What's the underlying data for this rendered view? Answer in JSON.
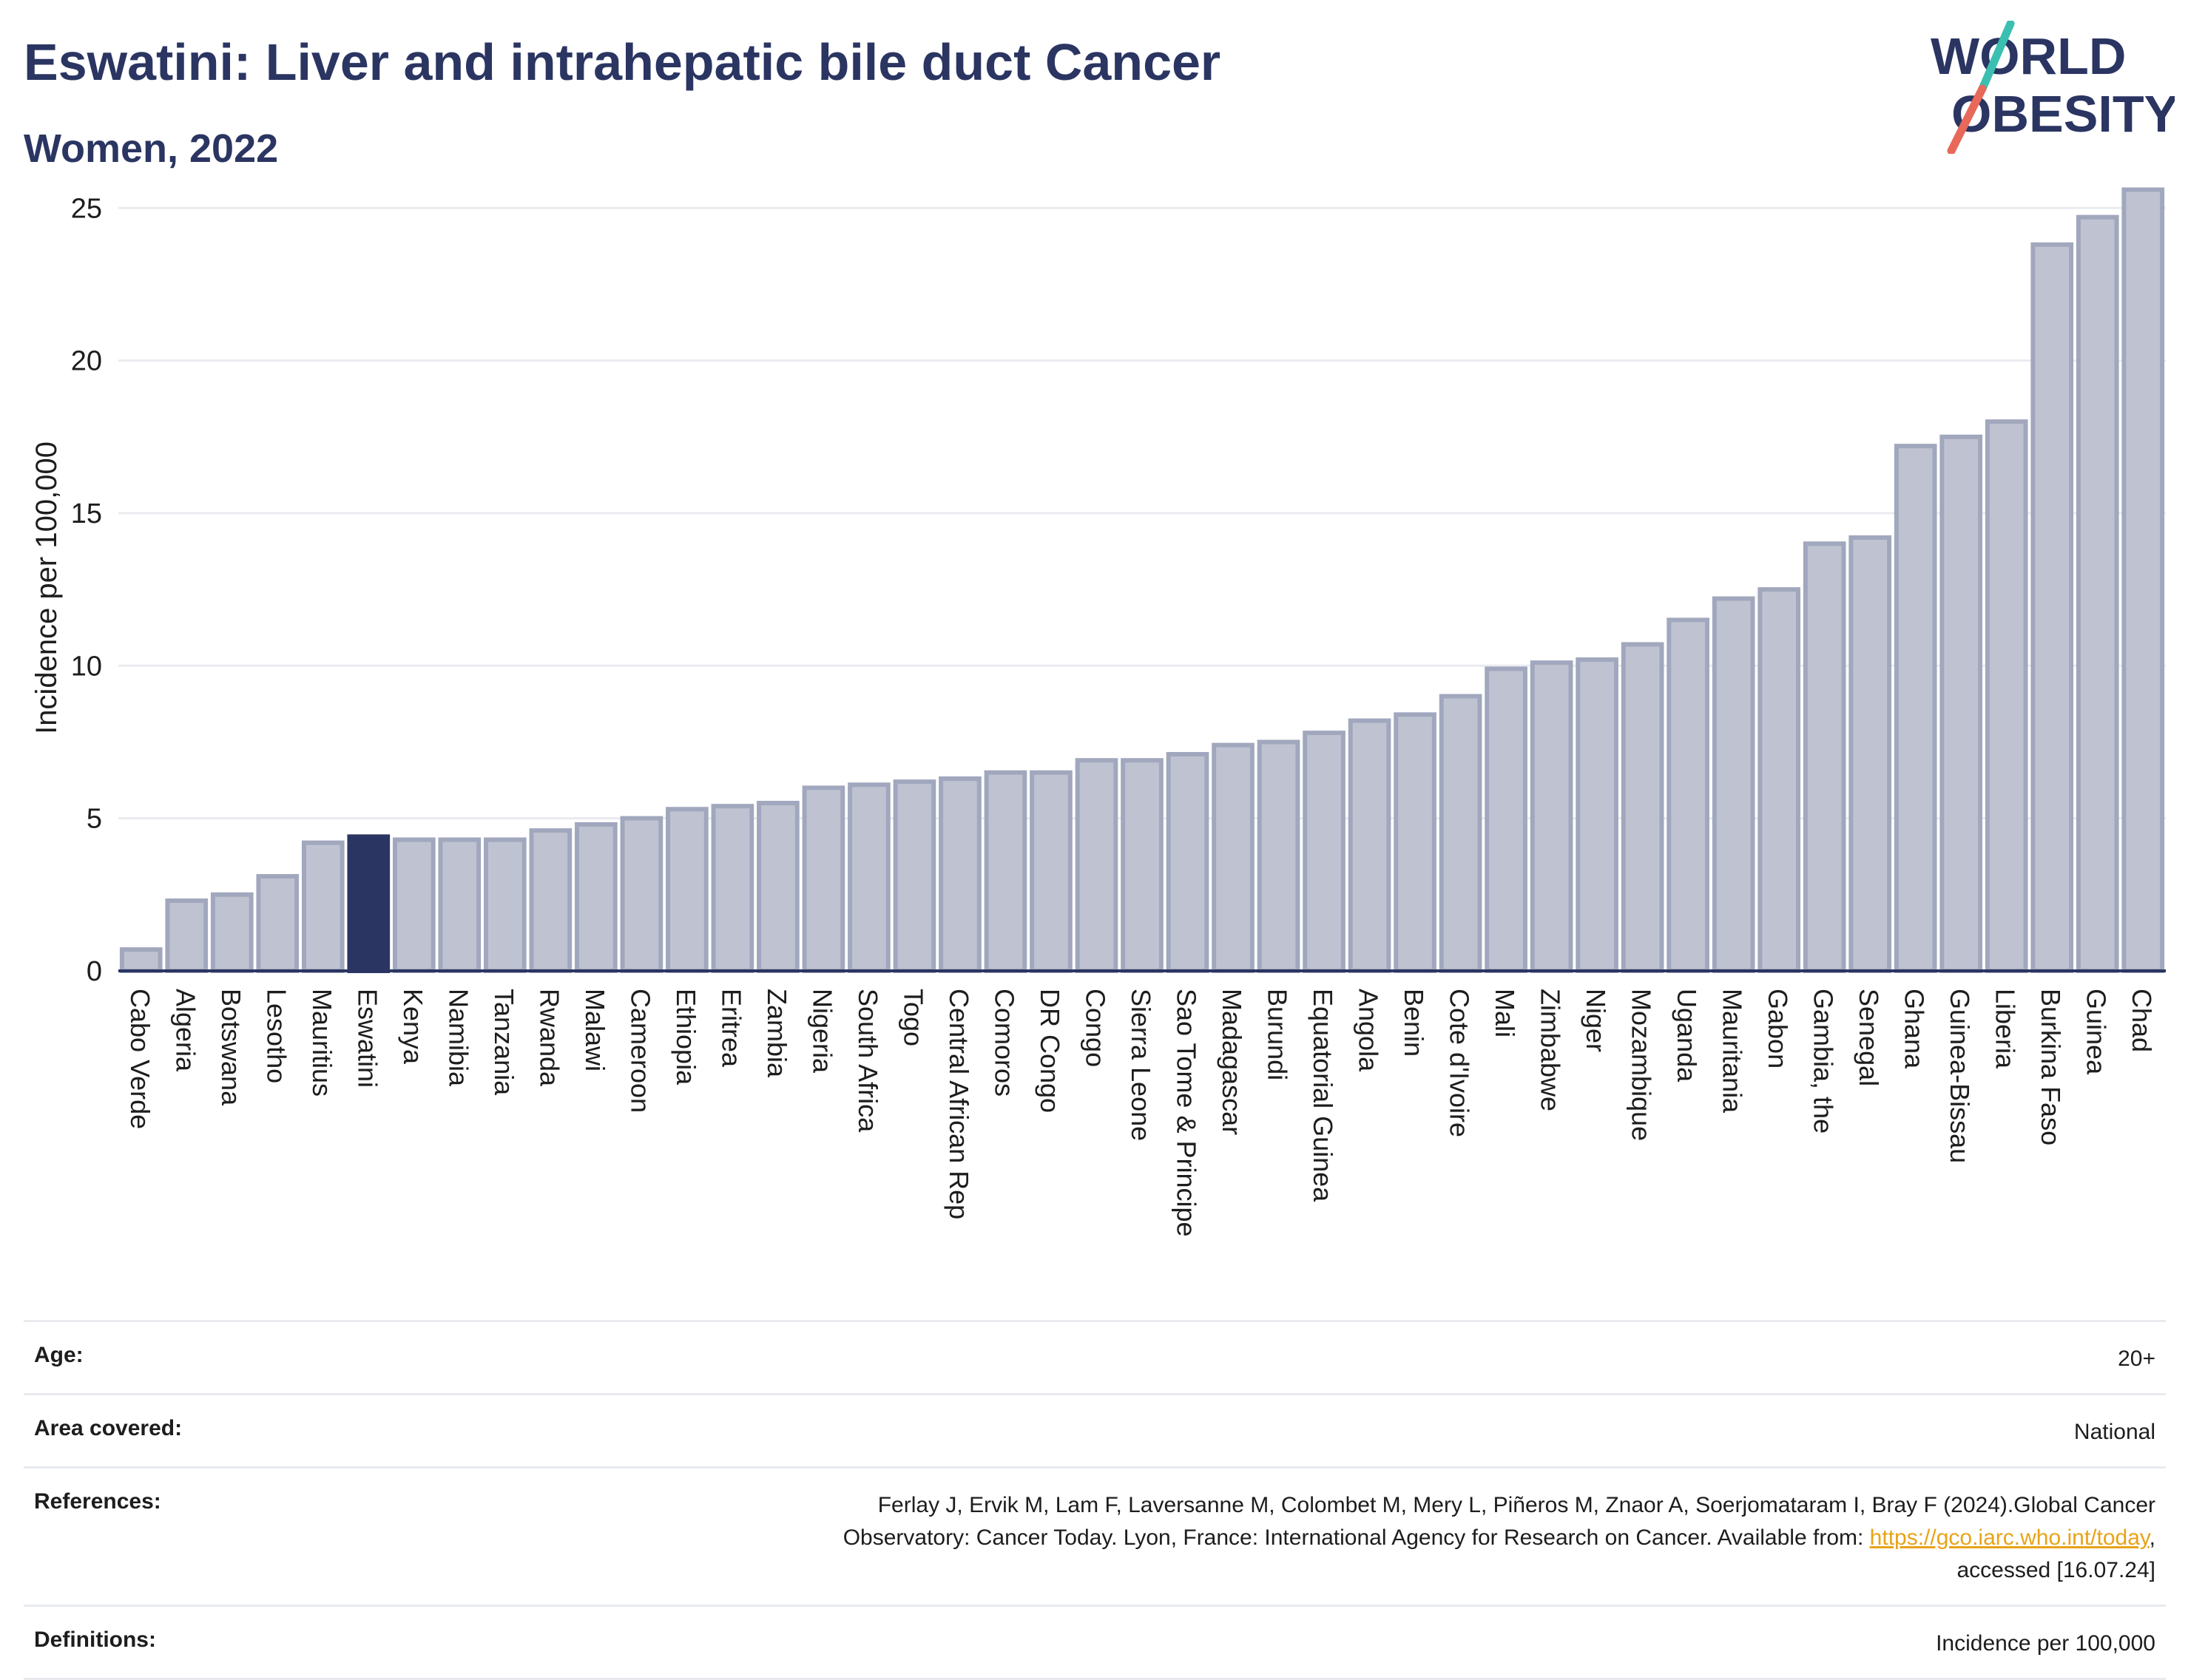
{
  "header": {
    "title": "Eswatini: Liver and intrahepatic bile duct Cancer",
    "subtitle": "Women, 2022"
  },
  "logo": {
    "line1": "WORLD",
    "line2": "OBESITY",
    "colors": {
      "text": "#2b3562",
      "slash_top": "#3bbfb0",
      "slash_bottom": "#e8695a"
    }
  },
  "chart_data": {
    "type": "bar",
    "title": "Eswatini: Liver and intrahepatic bile duct Cancer",
    "subtitle": "Women, 2022",
    "xlabel": "",
    "ylabel": "Incidence per 100,000",
    "ylim": [
      0,
      26
    ],
    "yticks": [
      0,
      5,
      10,
      15,
      20,
      25
    ],
    "grid": true,
    "highlight": "Eswatini",
    "colors": {
      "bar": "#bfc3d1",
      "bar_border": "#a1a7bd",
      "highlight": "#2b3562",
      "grid": "#e9ebf0"
    },
    "categories": [
      "Cabo Verde",
      "Algeria",
      "Botswana",
      "Lesotho",
      "Mauritius",
      "Eswatini",
      "Kenya",
      "Namibia",
      "Tanzania",
      "Rwanda",
      "Malawi",
      "Cameroon",
      "Ethiopia",
      "Eritrea",
      "Zambia",
      "Nigeria",
      "South Africa",
      "Togo",
      "Central African Rep",
      "Comoros",
      "DR Congo",
      "Congo",
      "Sierra Leone",
      "Sao Tome & Principe",
      "Madagascar",
      "Burundi",
      "Equatorial Guinea",
      "Angola",
      "Benin",
      "Cote d'Ivoire",
      "Mali",
      "Zimbabwe",
      "Niger",
      "Mozambique",
      "Uganda",
      "Mauritania",
      "Gabon",
      "Gambia, the",
      "Senegal",
      "Ghana",
      "Guinea-Bissau",
      "Liberia",
      "Burkina Faso",
      "Guinea",
      "Chad"
    ],
    "values": [
      0.7,
      2.3,
      2.5,
      3.1,
      4.2,
      4.4,
      4.3,
      4.3,
      4.3,
      4.6,
      4.8,
      5.0,
      5.3,
      5.4,
      5.5,
      6.0,
      6.1,
      6.2,
      6.3,
      6.5,
      6.5,
      6.9,
      6.9,
      7.1,
      7.4,
      7.5,
      7.8,
      8.2,
      8.4,
      9.0,
      9.9,
      10.1,
      10.2,
      10.7,
      11.5,
      12.2,
      12.5,
      14.0,
      14.2,
      17.2,
      17.5,
      18.0,
      23.8,
      24.7,
      25.6
    ]
  },
  "meta": {
    "age": {
      "label": "Age:",
      "value": "20+"
    },
    "area": {
      "label": "Area covered:",
      "value": "National"
    },
    "references": {
      "label": "References:",
      "text1": "Ferlay J, Ervik M, Lam F, Laversanne M, Colombet M, Mery L, Piñeros M, Znaor A, Soerjomataram I, Bray F (2024).Global Cancer",
      "text2": "Observatory: Cancer Today. Lyon, France: International Agency for Research on Cancer. Available from: ",
      "link": "https://gco.iarc.who.int/today",
      "text3": ",",
      "text4": "accessed [16.07.24]"
    },
    "definitions": {
      "label": "Definitions:",
      "value": "Incidence per 100,000"
    }
  }
}
